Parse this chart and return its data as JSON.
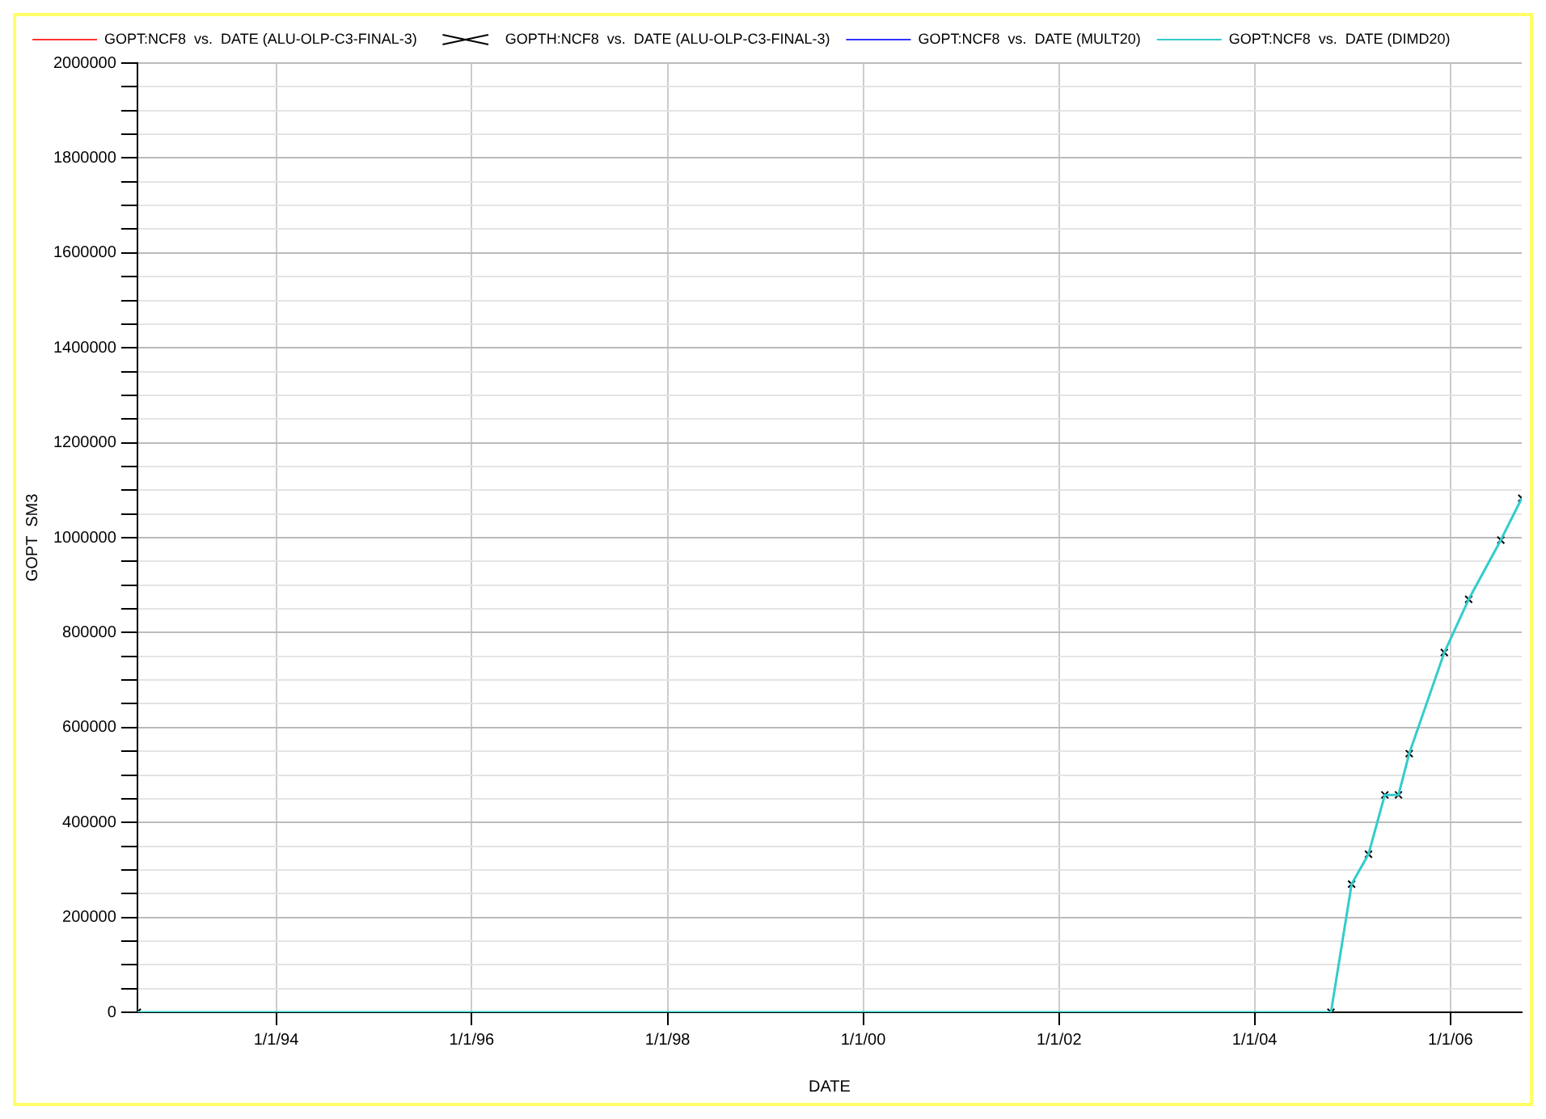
{
  "chart_data": {
    "type": "line",
    "xlabel": "DATE",
    "ylabel": "GOPT  SM3",
    "x": [
      "1992-08-01",
      "2004-10-12",
      "2004-12-28",
      "2005-03-01",
      "2005-05-01",
      "2005-06-21",
      "2005-07-31",
      "2005-12-09",
      "2006-03-10",
      "2006-07-08",
      "2006-09-24"
    ],
    "series": [
      {
        "name": "GOPT:NCF8  vs.  DATE (ALU-OLP-C3-FINAL-3)",
        "color": "#ff3333",
        "line_style": "solid",
        "marker": "none",
        "values": [
          null,
          null,
          null,
          null,
          null,
          null,
          null,
          null,
          null,
          null,
          null
        ]
      },
      {
        "name": "GOPTH:NCF8  vs.  DATE (ALU-OLP-C3-FINAL-3)",
        "type": "scatter",
        "color": "#000000",
        "marker": "cross",
        "values": [
          0,
          0,
          270000,
          333000,
          458000,
          458000,
          545000,
          758000,
          870000,
          995000,
          1083000
        ]
      },
      {
        "name": "GOPT:NCF8  vs.  DATE (MULT20)",
        "color": "#3333ff",
        "line_style": "solid",
        "marker": "none",
        "values": [
          null,
          null,
          null,
          null,
          null,
          null,
          null,
          null,
          null,
          null,
          null
        ]
      },
      {
        "name": "GOPT:NCF8  vs.  DATE (DIMD20)",
        "color": "#33cccc",
        "line_style": "solid",
        "marker": "none",
        "values": [
          0,
          0,
          270000,
          333000,
          458000,
          458000,
          545000,
          758000,
          870000,
          995000,
          1083000
        ]
      }
    ],
    "xlim": [
      "1992-08-01",
      "2006-09-24"
    ],
    "xticks": [
      {
        "value": "1994-01-01",
        "label": "1/1/94"
      },
      {
        "value": "1996-01-01",
        "label": "1/1/96"
      },
      {
        "value": "1998-01-01",
        "label": "1/1/98"
      },
      {
        "value": "2000-01-01",
        "label": "1/1/00"
      },
      {
        "value": "2002-01-01",
        "label": "1/1/02"
      },
      {
        "value": "2004-01-01",
        "label": "1/1/04"
      },
      {
        "value": "2006-01-01",
        "label": "1/1/06"
      }
    ],
    "ylim": [
      0,
      2000000
    ],
    "yticks": [
      0,
      200000,
      400000,
      600000,
      800000,
      1000000,
      1200000,
      1400000,
      1600000,
      1800000,
      2000000
    ],
    "grid": true,
    "legend": "top left"
  }
}
